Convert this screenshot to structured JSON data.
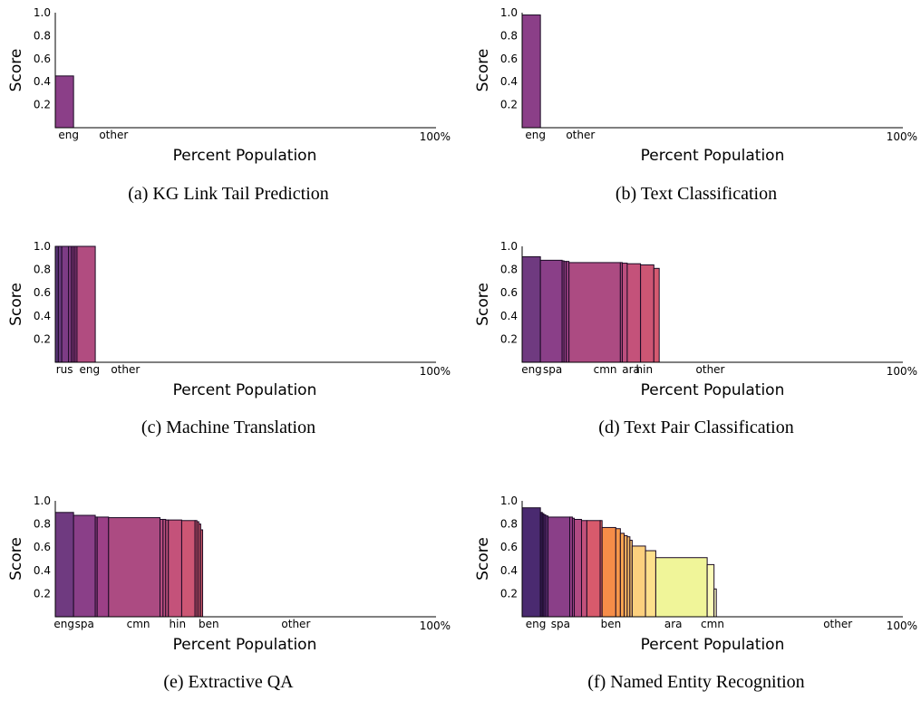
{
  "chart_data": [
    {
      "type": "bar",
      "panel": "a",
      "caption": "(a) KG Link Tail Prediction",
      "xlabel": "Percent Population",
      "ylabel": "Score",
      "ylim": [
        0,
        1.0
      ],
      "yticks": [
        "0.2",
        "0.4",
        "0.6",
        "0.8",
        "1.0"
      ],
      "x_end_label": "100%",
      "bars": [
        {
          "width": 4.8,
          "value": 0.45,
          "color": "#8b3f88"
        }
      ],
      "xlabels": [
        {
          "text": "eng",
          "pos": 3.5
        },
        {
          "text": "other",
          "pos": 15.3
        }
      ]
    },
    {
      "type": "bar",
      "panel": "b",
      "caption": "(b) Text Classification",
      "xlabel": "Percent Population",
      "ylabel": "Score",
      "ylim": [
        0,
        1.0
      ],
      "yticks": [
        "0.2",
        "0.4",
        "0.6",
        "0.8",
        "1.0"
      ],
      "x_end_label": "100%",
      "bars": [
        {
          "width": 4.8,
          "value": 0.98,
          "color": "#8b3f88"
        }
      ],
      "xlabels": [
        {
          "text": "eng",
          "pos": 3.5
        },
        {
          "text": "other",
          "pos": 15.3
        }
      ]
    },
    {
      "type": "bar",
      "panel": "c",
      "caption": "(c) Machine Translation",
      "xlabel": "Percent Population",
      "ylabel": "Score",
      "ylim": [
        0,
        1.0
      ],
      "yticks": [
        "0.2",
        "0.4",
        "0.6",
        "0.8",
        "1.0"
      ],
      "x_end_label": "100%",
      "bars": [
        {
          "width": 0.8,
          "value": 1.0,
          "color": "#5a3578"
        },
        {
          "width": 0.9,
          "value": 1.0,
          "color": "#6b3a80"
        },
        {
          "width": 1.8,
          "value": 1.0,
          "color": "#7d3c85"
        },
        {
          "width": 0.7,
          "value": 1.0,
          "color": "#8a3f88"
        },
        {
          "width": 0.5,
          "value": 1.0,
          "color": "#933f88"
        },
        {
          "width": 0.5,
          "value": 1.0,
          "color": "#9a4087"
        },
        {
          "width": 0.5,
          "value": 1.0,
          "color": "#a04287"
        },
        {
          "width": 4.8,
          "value": 1.0,
          "color": "#b14c80"
        }
      ],
      "xlabels": [
        {
          "text": "rus",
          "pos": 2.4
        },
        {
          "text": "eng",
          "pos": 9.0
        },
        {
          "text": "other",
          "pos": 18.4
        }
      ]
    },
    {
      "type": "bar",
      "panel": "d",
      "caption": "(d) Text Pair Classification",
      "xlabel": "Percent Population",
      "ylabel": "Score",
      "ylim": [
        0,
        1.0
      ],
      "yticks": [
        "0.2",
        "0.4",
        "0.6",
        "0.8",
        "1.0"
      ],
      "x_end_label": "100%",
      "bars": [
        {
          "width": 4.8,
          "value": 0.91,
          "color": "#6f3a80"
        },
        {
          "width": 5.7,
          "value": 0.88,
          "color": "#8a3f88"
        },
        {
          "width": 0.5,
          "value": 0.875,
          "color": "#943f88"
        },
        {
          "width": 0.6,
          "value": 0.87,
          "color": "#9a4087"
        },
        {
          "width": 0.7,
          "value": 0.87,
          "color": "#a04287"
        },
        {
          "width": 13.5,
          "value": 0.86,
          "color": "#ac4b82"
        },
        {
          "width": 0.5,
          "value": 0.86,
          "color": "#b54d80"
        },
        {
          "width": 1.3,
          "value": 0.855,
          "color": "#bc4f7e"
        },
        {
          "width": 3.5,
          "value": 0.85,
          "color": "#c4527a"
        },
        {
          "width": 3.5,
          "value": 0.84,
          "color": "#cc5674"
        },
        {
          "width": 1.4,
          "value": 0.81,
          "color": "#d45a70"
        }
      ],
      "xlabels": [
        {
          "text": "eng",
          "pos": 2.5
        },
        {
          "text": "spa",
          "pos": 8.0
        },
        {
          "text": "cmn",
          "pos": 21.8
        },
        {
          "text": "ara",
          "pos": 28.6
        },
        {
          "text": "hin",
          "pos": 32.1
        },
        {
          "text": "other",
          "pos": 49.4
        }
      ]
    },
    {
      "type": "bar",
      "panel": "e",
      "caption": "(e) Extractive QA",
      "xlabel": "Percent Population",
      "ylabel": "Score",
      "ylim": [
        0,
        1.0
      ],
      "yticks": [
        "0.2",
        "0.4",
        "0.6",
        "0.8",
        "1.0"
      ],
      "x_end_label": "100%",
      "bars": [
        {
          "width": 4.8,
          "value": 0.9,
          "color": "#6f3a80"
        },
        {
          "width": 5.7,
          "value": 0.875,
          "color": "#8a3f88"
        },
        {
          "width": 0.5,
          "value": 0.86,
          "color": "#963f88"
        },
        {
          "width": 3.0,
          "value": 0.86,
          "color": "#9c4087"
        },
        {
          "width": 13.5,
          "value": 0.855,
          "color": "#ac4b82"
        },
        {
          "width": 0.8,
          "value": 0.84,
          "color": "#b54d80"
        },
        {
          "width": 0.7,
          "value": 0.84,
          "color": "#ba4f7e"
        },
        {
          "width": 0.7,
          "value": 0.835,
          "color": "#bf507c"
        },
        {
          "width": 3.5,
          "value": 0.835,
          "color": "#c4527a"
        },
        {
          "width": 3.5,
          "value": 0.83,
          "color": "#cc5674"
        },
        {
          "width": 0.5,
          "value": 0.83,
          "color": "#d15871"
        },
        {
          "width": 0.5,
          "value": 0.82,
          "color": "#d45a70"
        },
        {
          "width": 0.5,
          "value": 0.8,
          "color": "#d85c6e"
        },
        {
          "width": 0.5,
          "value": 0.75,
          "color": "#dc5e6c"
        }
      ],
      "xlabels": [
        {
          "text": "eng",
          "pos": 2.3
        },
        {
          "text": "spa",
          "pos": 7.7
        },
        {
          "text": "cmn",
          "pos": 21.8
        },
        {
          "text": "hin",
          "pos": 32.1
        },
        {
          "text": "ben",
          "pos": 40.3
        },
        {
          "text": "other",
          "pos": 63.2
        }
      ]
    },
    {
      "type": "bar",
      "panel": "f",
      "caption": "(f) Named Entity Recognition",
      "xlabel": "Percent Population",
      "ylabel": "Score",
      "ylim": [
        0,
        1.0
      ],
      "yticks": [
        "0.2",
        "0.4",
        "0.6",
        "0.8",
        "1.0"
      ],
      "x_end_label": "100%",
      "bars": [
        {
          "width": 4.8,
          "value": 0.94,
          "color": "#4a2a70"
        },
        {
          "width": 0.5,
          "value": 0.9,
          "color": "#3a1f5a"
        },
        {
          "width": 0.4,
          "value": 0.89,
          "color": "#442266"
        },
        {
          "width": 0.5,
          "value": 0.88,
          "color": "#52296e"
        },
        {
          "width": 0.6,
          "value": 0.87,
          "color": "#5e2f75"
        },
        {
          "width": 5.7,
          "value": 0.86,
          "color": "#8a3f88"
        },
        {
          "width": 0.7,
          "value": 0.86,
          "color": "#983f88"
        },
        {
          "width": 0.5,
          "value": 0.85,
          "color": "#a04287"
        },
        {
          "width": 1.9,
          "value": 0.84,
          "color": "#b04a82"
        },
        {
          "width": 1.4,
          "value": 0.83,
          "color": "#c2517b"
        },
        {
          "width": 3.5,
          "value": 0.83,
          "color": "#d85a6c"
        },
        {
          "width": 0.5,
          "value": 0.83,
          "color": "#e2605f"
        },
        {
          "width": 3.6,
          "value": 0.77,
          "color": "#f68d48"
        },
        {
          "width": 1.2,
          "value": 0.76,
          "color": "#f8984a"
        },
        {
          "width": 1.0,
          "value": 0.72,
          "color": "#f9a450"
        },
        {
          "width": 0.8,
          "value": 0.7,
          "color": "#fbb25c"
        },
        {
          "width": 0.7,
          "value": 0.69,
          "color": "#fbbd66"
        },
        {
          "width": 0.6,
          "value": 0.66,
          "color": "#fcc572"
        },
        {
          "width": 3.5,
          "value": 0.61,
          "color": "#fcd07e"
        },
        {
          "width": 2.7,
          "value": 0.57,
          "color": "#fde08c"
        },
        {
          "width": 13.5,
          "value": 0.51,
          "color": "#f0f599"
        },
        {
          "width": 1.8,
          "value": 0.45,
          "color": "#fbfbb8"
        },
        {
          "width": 0.6,
          "value": 0.24,
          "color": "#fcfdbf"
        }
      ],
      "xlabels": [
        {
          "text": "eng",
          "pos": 3.6
        },
        {
          "text": "spa",
          "pos": 10.1
        },
        {
          "text": "ben",
          "pos": 23.3
        },
        {
          "text": "ara",
          "pos": 39.7
        },
        {
          "text": "cmn",
          "pos": 50.0
        },
        {
          "text": "other",
          "pos": 82.9
        }
      ]
    }
  ]
}
